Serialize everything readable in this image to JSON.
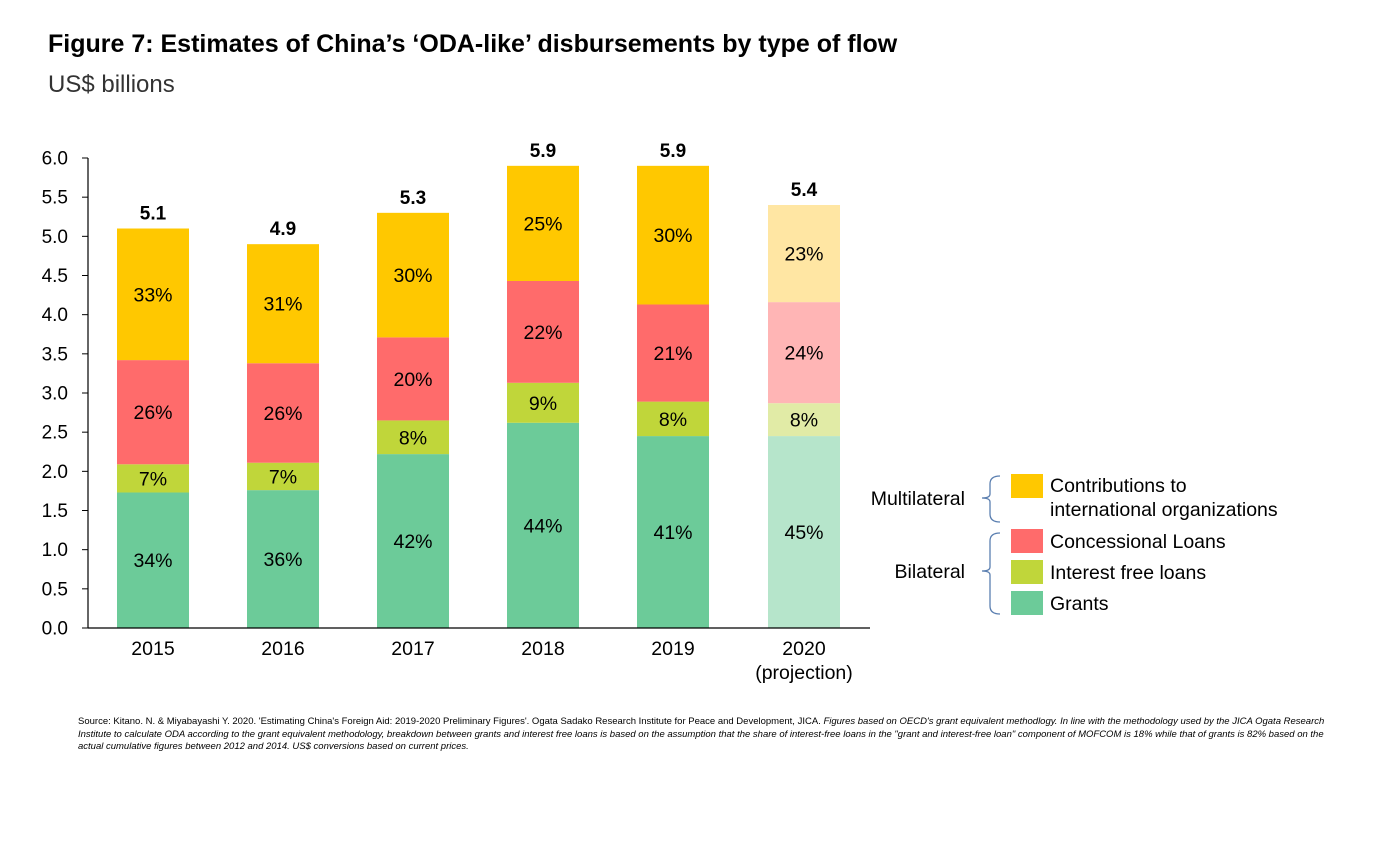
{
  "header": {
    "title": "Figure 7: Estimates of China’s ‘ODA-like’ disbursements by type of flow",
    "subtitle": "US$ billions"
  },
  "colors": {
    "grants": "#6ccb99",
    "interest_free": "#c0d63a",
    "concessional": "#ff6b6b",
    "contributions": "#ffc800",
    "grants_projection": "#b6e5cb",
    "interest_free_projection": "#e1eba6",
    "concessional_projection": "#ffb5b5",
    "contributions_projection": "#ffe6a3"
  },
  "chart_data": {
    "type": "bar",
    "stacked": true,
    "categories": [
      "2015",
      "2016",
      "2017",
      "2018",
      "2019",
      "2020\n(projection)"
    ],
    "totals": [
      5.1,
      4.9,
      5.3,
      5.9,
      5.9,
      5.4
    ],
    "total_labels": [
      "5.1",
      "4.9",
      "5.3",
      "5.9",
      "5.9",
      "5.4"
    ],
    "series": [
      {
        "name": "Grants",
        "key": "grants",
        "values": [
          1.73,
          1.76,
          2.22,
          2.62,
          2.45,
          2.45
        ],
        "labels": [
          "34%",
          "36%",
          "42%",
          "44%",
          "41%",
          "45%"
        ]
      },
      {
        "name": "Interest free loans",
        "key": "interest_free",
        "values": [
          0.36,
          0.35,
          0.43,
          0.51,
          0.44,
          0.42
        ],
        "labels": [
          "7%",
          "7%",
          "8%",
          "9%",
          "8%",
          "8%"
        ]
      },
      {
        "name": "Concessional Loans",
        "key": "concessional",
        "values": [
          1.33,
          1.27,
          1.06,
          1.3,
          1.24,
          1.29
        ],
        "labels": [
          "26%",
          "26%",
          "20%",
          "22%",
          "21%",
          "24%"
        ]
      },
      {
        "name": "Contributions to international organizations",
        "key": "contributions",
        "values": [
          1.68,
          1.52,
          1.59,
          1.47,
          1.77,
          1.24
        ],
        "labels": [
          "33%",
          "31%",
          "30%",
          "25%",
          "30%",
          "23%"
        ]
      }
    ],
    "projection_index": 5,
    "ylim": [
      0,
      6
    ],
    "yticks": [
      "0.0",
      "0.5",
      "1.0",
      "1.5",
      "2.0",
      "2.5",
      "3.0",
      "3.5",
      "4.0",
      "4.5",
      "5.0",
      "5.5",
      "6.0"
    ],
    "legend": {
      "placement": "right",
      "groups": [
        {
          "label": "Multilateral",
          "items": [
            {
              "key": "contributions",
              "text": [
                "Contributions to",
                "international organizations"
              ]
            }
          ]
        },
        {
          "label": "Bilateral",
          "items": [
            {
              "key": "concessional",
              "text": [
                "Concessional Loans"
              ]
            },
            {
              "key": "interest_free",
              "text": [
                "Interest free loans"
              ]
            },
            {
              "key": "grants",
              "text": [
                "Grants"
              ]
            }
          ]
        }
      ]
    }
  },
  "source": {
    "plain": "Source: Kitano. N. & Miyabayashi Y. 2020. 'Estimating China's Foreign Aid: 2019-2020 Preliminary Figures'. Ogata Sadako Research Institute for Peace and Development, JICA. ",
    "italic": "Figures based on OECD's grant equivalent methodlogy. In line with the methodology used by the JICA Ogata Research Institute to calculate ODA according to the grant equivalent methodology, breakdown between grants and interest free loans is based on the assumption that the share of interest-free loans in the \"grant and interest-free loan\" component of MOFCOM is 18% while that of grants is 82% based on the actual cumulative figures between 2012 and 2014. US$ conversions based on current prices."
  }
}
